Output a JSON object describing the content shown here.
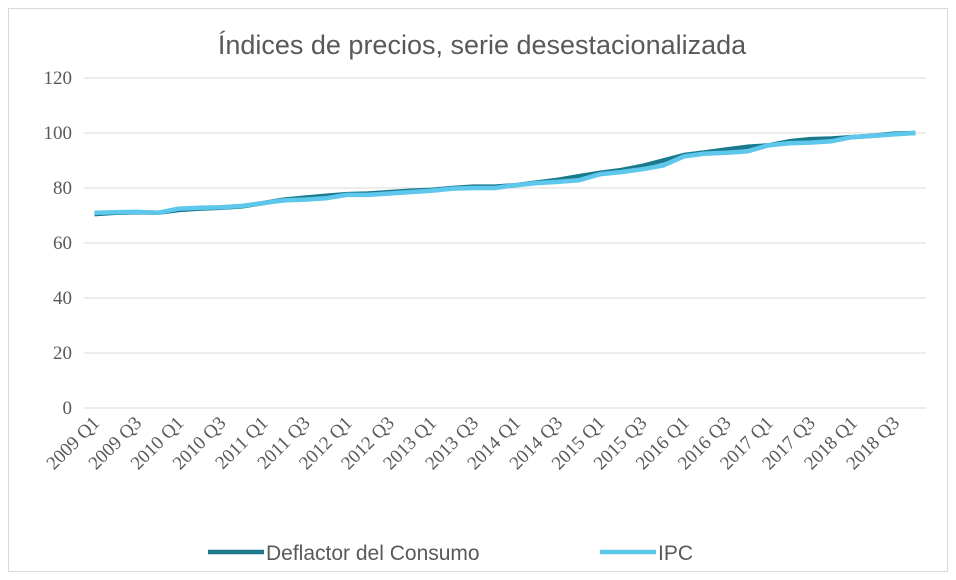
{
  "chart_data": {
    "type": "line",
    "title": "Índices de precios, serie desestacionalizada",
    "categories": [
      "2009 Q1",
      null,
      "2009 Q3",
      null,
      "2010 Q1",
      null,
      "2010 Q3",
      null,
      "2011 Q1",
      null,
      "2011 Q3",
      null,
      "2012 Q1",
      null,
      "2012 Q3",
      null,
      "2013 Q1",
      null,
      "2013 Q3",
      null,
      "2014 Q1",
      null,
      "2014 Q3",
      null,
      "2015 Q1",
      null,
      "2015 Q3",
      null,
      "2016 Q1",
      null,
      "2016 Q3",
      null,
      "2017 Q1",
      null,
      "2017 Q3",
      null,
      "2018 Q1",
      null,
      "2018 Q3",
      null
    ],
    "series": [
      {
        "name": "Deflactor del Consumo",
        "color": "#1a7a8c",
        "values": [
          70.5,
          71,
          71.2,
          71,
          72,
          72.5,
          72.8,
          73.3,
          74.5,
          75.8,
          76.5,
          77.2,
          77.8,
          78,
          78.5,
          79,
          79.3,
          80,
          80.5,
          80.5,
          81,
          82,
          83,
          84.3,
          85.5,
          86.5,
          88,
          90,
          92,
          93,
          94,
          95,
          95.5,
          97,
          97.8,
          98,
          98.5,
          99,
          99.8,
          100
        ]
      },
      {
        "name": "IPC",
        "color": "#5ec8ec",
        "values": [
          71,
          71.2,
          71.3,
          71,
          72.5,
          72.8,
          73,
          73.5,
          74.5,
          75.5,
          75.8,
          76.3,
          77.5,
          77.5,
          78,
          78.5,
          79,
          79.8,
          80,
          80,
          81,
          81.8,
          82.2,
          82.8,
          85,
          85.8,
          86.8,
          88.2,
          91.5,
          92.5,
          92.8,
          93.3,
          95.5,
          96.3,
          96.5,
          97,
          98.5,
          99,
          99.5,
          100
        ]
      }
    ],
    "ylim": [
      0,
      120
    ],
    "yticks": [
      0,
      20,
      40,
      60,
      80,
      100,
      120
    ],
    "grid": true,
    "legend": "bottom"
  }
}
